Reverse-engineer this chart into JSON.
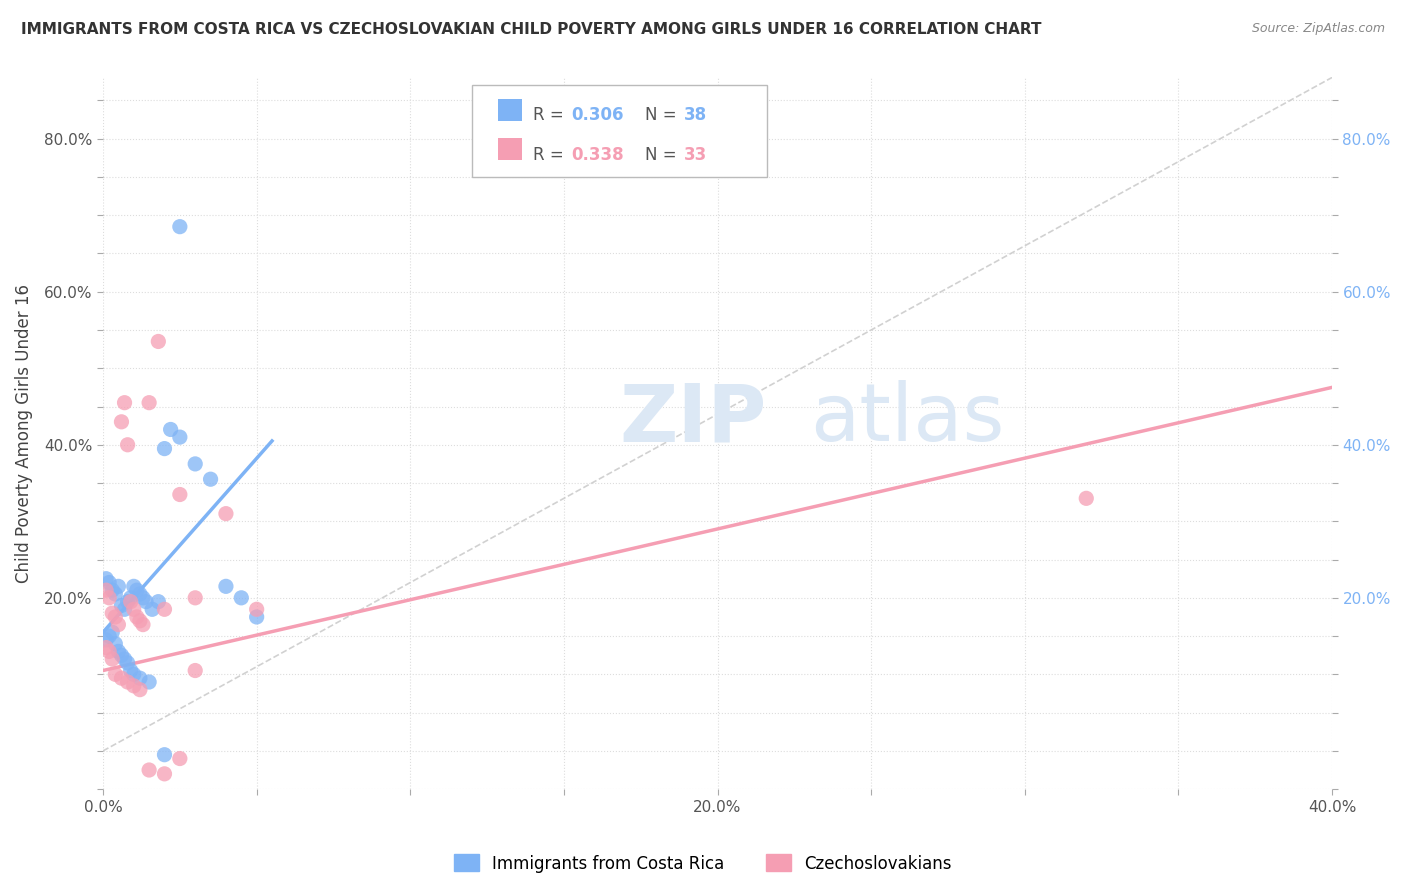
{
  "title": "IMMIGRANTS FROM COSTA RICA VS CZECHOSLOVAKIAN CHILD POVERTY AMONG GIRLS UNDER 16 CORRELATION CHART",
  "source": "Source: ZipAtlas.com",
  "ylabel": "Child Poverty Among Girls Under 16",
  "legend_labels": [
    "Immigrants from Costa Rica",
    "Czechoslovakians"
  ],
  "color_blue": "#7EB3F5",
  "color_pink": "#F59EB3",
  "watermark_zip": "ZIP",
  "watermark_atlas": "atlas",
  "xlim": [
    0.0,
    0.4
  ],
  "ylim": [
    -0.05,
    0.88
  ],
  "blue_scatter_x": [
    0.001,
    0.002,
    0.003,
    0.004,
    0.005,
    0.006,
    0.007,
    0.008,
    0.009,
    0.01,
    0.011,
    0.012,
    0.013,
    0.014,
    0.016,
    0.018,
    0.02,
    0.022,
    0.025,
    0.03,
    0.035,
    0.04,
    0.045,
    0.05,
    0.001,
    0.002,
    0.003,
    0.004,
    0.005,
    0.006,
    0.007,
    0.008,
    0.009,
    0.01,
    0.012,
    0.015,
    0.02,
    0.025
  ],
  "blue_scatter_y": [
    0.225,
    0.22,
    0.21,
    0.205,
    0.215,
    0.19,
    0.185,
    0.195,
    0.2,
    0.215,
    0.21,
    0.205,
    0.2,
    0.195,
    0.185,
    0.195,
    0.395,
    0.42,
    0.41,
    0.375,
    0.355,
    0.215,
    0.2,
    0.175,
    0.145,
    0.15,
    0.155,
    0.14,
    0.13,
    0.125,
    0.12,
    0.115,
    0.105,
    0.1,
    0.095,
    0.09,
    -0.005,
    0.685
  ],
  "pink_scatter_x": [
    0.001,
    0.002,
    0.003,
    0.004,
    0.005,
    0.006,
    0.007,
    0.008,
    0.009,
    0.01,
    0.011,
    0.012,
    0.013,
    0.015,
    0.018,
    0.02,
    0.025,
    0.03,
    0.04,
    0.05,
    0.001,
    0.002,
    0.003,
    0.004,
    0.006,
    0.008,
    0.01,
    0.012,
    0.015,
    0.02,
    0.025,
    0.03,
    0.32
  ],
  "pink_scatter_y": [
    0.21,
    0.2,
    0.18,
    0.175,
    0.165,
    0.43,
    0.455,
    0.4,
    0.195,
    0.185,
    0.175,
    0.17,
    0.165,
    0.455,
    0.535,
    0.185,
    0.335,
    0.2,
    0.31,
    0.185,
    0.135,
    0.13,
    0.12,
    0.1,
    0.095,
    0.09,
    0.085,
    0.08,
    -0.025,
    -0.03,
    -0.01,
    0.105,
    0.33
  ],
  "blue_line_x": [
    0.0,
    0.055
  ],
  "blue_line_y": [
    0.155,
    0.405
  ],
  "pink_line_x": [
    0.0,
    0.4
  ],
  "pink_line_y": [
    0.105,
    0.475
  ],
  "ref_line_x": [
    0.0,
    0.4
  ],
  "ref_line_y": [
    0.0,
    0.88
  ],
  "xtick_positions": [
    0.0,
    0.05,
    0.1,
    0.15,
    0.2,
    0.25,
    0.3,
    0.35,
    0.4
  ],
  "ytick_positions": [
    0.0,
    0.05,
    0.1,
    0.15,
    0.2,
    0.25,
    0.3,
    0.35,
    0.4,
    0.45,
    0.5,
    0.55,
    0.6,
    0.65,
    0.7,
    0.75,
    0.8
  ],
  "legend_R_blue": "R = ",
  "legend_val_blue": "0.306",
  "legend_N_blue": "N = ",
  "legend_Nval_blue": "38",
  "legend_R_pink": "R = ",
  "legend_val_pink": "0.338",
  "legend_N_pink": "N = ",
  "legend_Nval_pink": "33"
}
